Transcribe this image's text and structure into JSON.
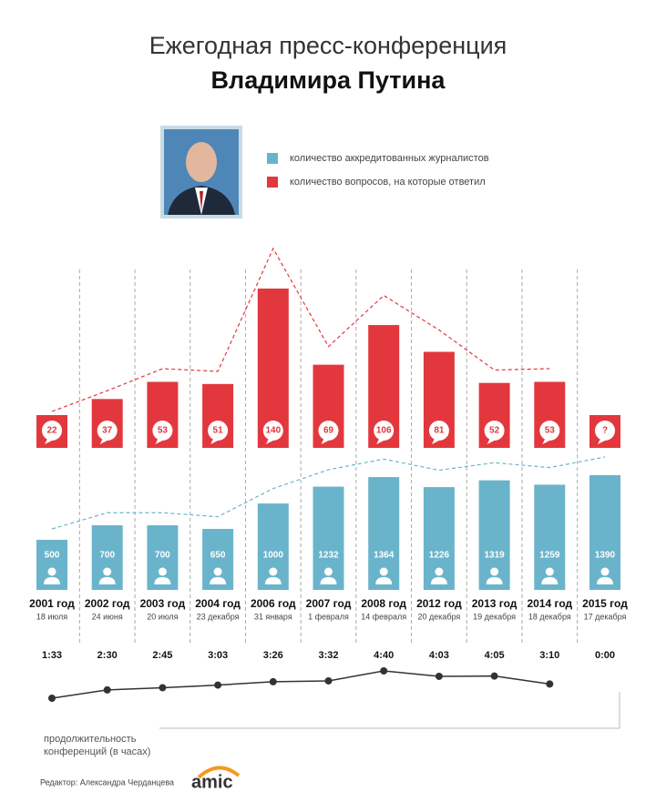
{
  "chart_data": {
    "type": "bar",
    "title": "Ежегодная пресс-конференция",
    "subtitle": "Владимира Путина",
    "categories": [
      "2001 год",
      "2002 год",
      "2003 год",
      "2004 год",
      "2006 год",
      "2007 год",
      "2008 год",
      "2012 год",
      "2013 год",
      "2014 год",
      "2015 год"
    ],
    "dates": [
      "18 июля",
      "24 июня",
      "20 июля",
      "23 декабря",
      "31 января",
      "1 февраля",
      "14 февраля",
      "20 декабря",
      "19 декабря",
      "18 декабря",
      "17 декабря"
    ],
    "series": [
      {
        "name": "количество аккредитованных журналистов",
        "color": "#6ab4cb",
        "values": [
          500,
          700,
          700,
          650,
          1000,
          1232,
          1364,
          1226,
          1319,
          1259,
          1390
        ]
      },
      {
        "name": "количество вопросов, на которые ответил",
        "color": "#e2383d",
        "values": [
          22,
          37,
          53,
          51,
          140,
          69,
          106,
          81,
          52,
          53,
          null
        ],
        "value_labels": [
          "22",
          "37",
          "53",
          "51",
          "140",
          "69",
          "106",
          "81",
          "52",
          "53",
          "?"
        ]
      }
    ],
    "duration": {
      "label_lines": [
        "продолжительность",
        "конференций (в часах)"
      ],
      "values": [
        1.55,
        2.5,
        2.75,
        3.05,
        3.43,
        3.53,
        4.67,
        4.05,
        4.08,
        3.17,
        null
      ],
      "value_labels": [
        "1:33",
        "2:30",
        "2:45",
        "3:03",
        "3:26",
        "3:32",
        "4:40",
        "4:03",
        "4:05",
        "3:10",
        "0:00"
      ]
    },
    "editor": "Редактор: Александра Черданцева",
    "logo": "amic"
  }
}
